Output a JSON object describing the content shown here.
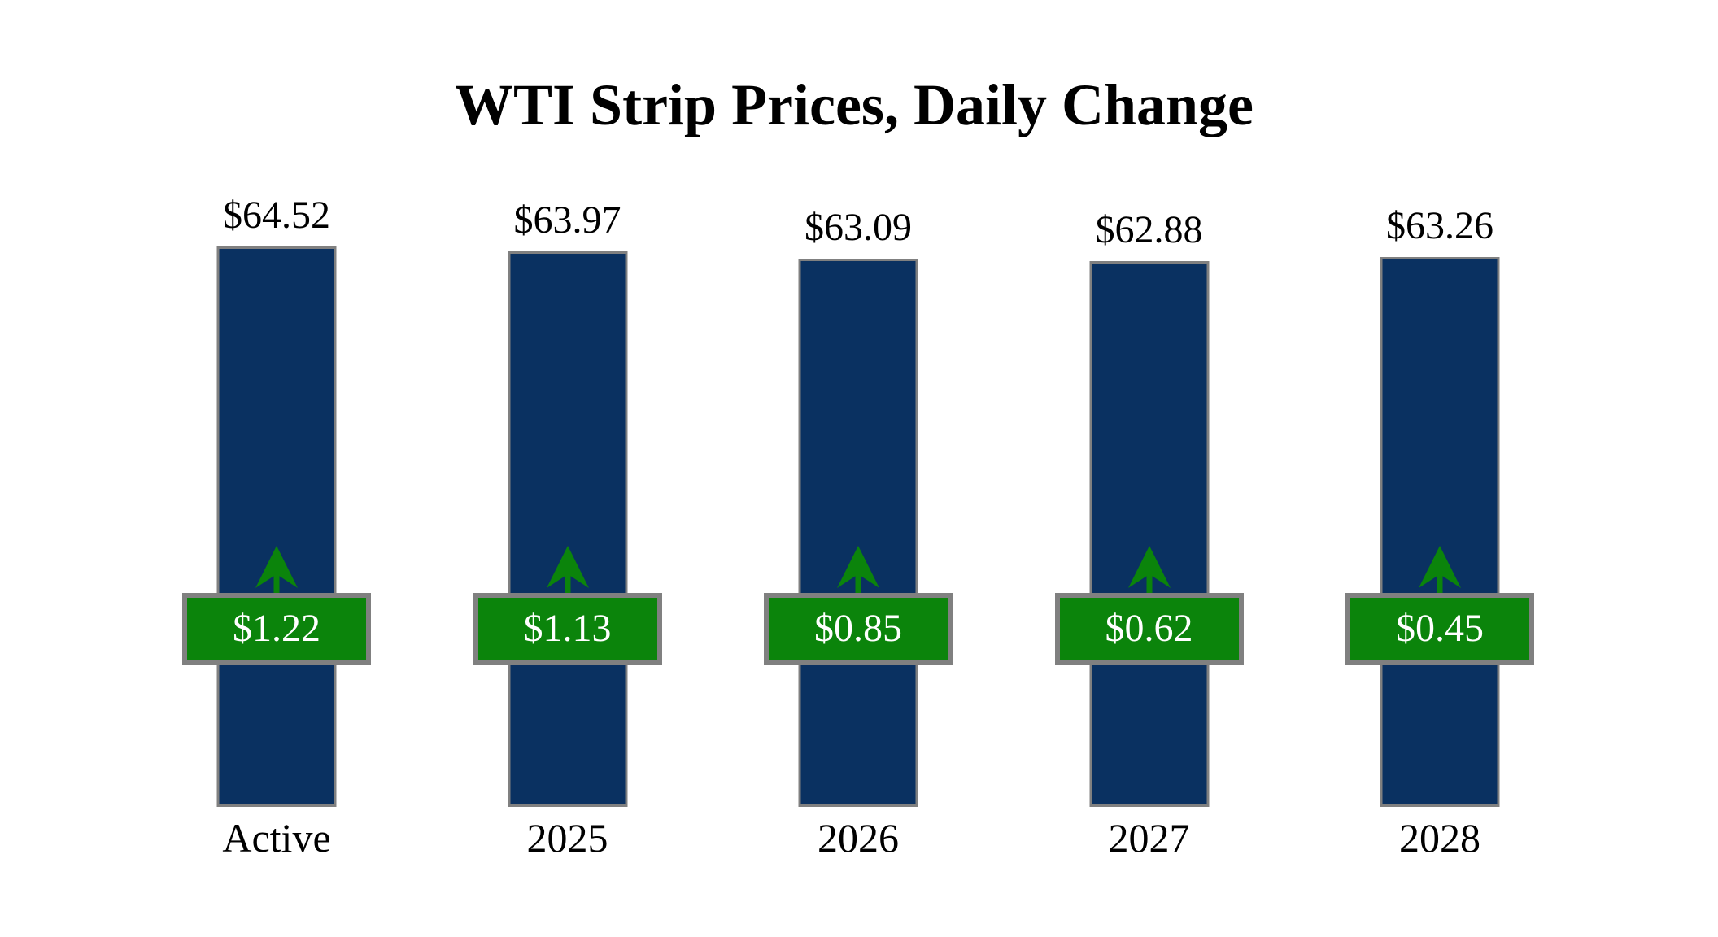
{
  "title": "WTI Strip Prices, Daily Change",
  "colors": {
    "background": "#FFFFFF",
    "bar_fill": "#0A3161",
    "bar_border": "#808080",
    "badge_fill": "#0B840B",
    "badge_border": "#808080",
    "badge_text": "#FFFFFF",
    "arrow": "#0B840B",
    "label_text": "#000000"
  },
  "chart_data": {
    "type": "bar",
    "title": "WTI Strip Prices, Daily Change",
    "categories": [
      "Active",
      "2025",
      "2026",
      "2027",
      "2028"
    ],
    "series": [
      {
        "name": "WTI Strip Price",
        "values": [
          64.52,
          63.97,
          63.09,
          62.88,
          63.26
        ],
        "labels": [
          "$64.52",
          "$63.97",
          "$63.09",
          "$62.88",
          "$63.26"
        ]
      },
      {
        "name": "Daily Change",
        "values": [
          1.22,
          1.13,
          0.85,
          0.62,
          0.45
        ],
        "labels": [
          "$1.22",
          "$1.13",
          "$0.85",
          "$0.62",
          "$0.45"
        ],
        "direction": "up"
      }
    ],
    "xlabel": "",
    "ylabel": "",
    "ylim": [
      0,
      65
    ],
    "grid": false,
    "legend": "none",
    "orientation": "vertical"
  }
}
